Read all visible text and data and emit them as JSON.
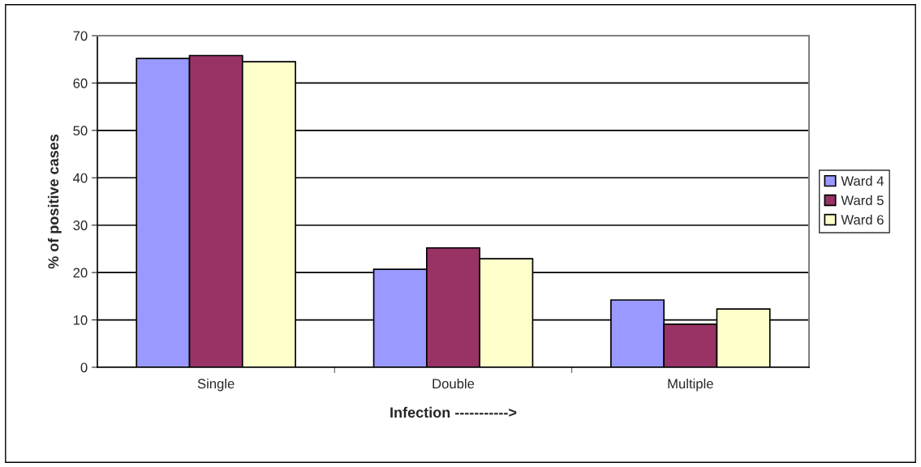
{
  "chart_data": {
    "type": "bar",
    "xlabel": "Infection ----------->",
    "ylabel": "% of positive cases",
    "categories": [
      "Single",
      "Double",
      "Multiple"
    ],
    "series": [
      {
        "name": "Ward 4",
        "color": "#9999ff",
        "values": [
          65.2,
          20.7,
          14.2
        ]
      },
      {
        "name": "Ward 5",
        "color": "#993366",
        "values": [
          65.8,
          25.2,
          9.1
        ]
      },
      {
        "name": "Ward 6",
        "color": "#ffffcc",
        "values": [
          64.5,
          22.9,
          12.3
        ]
      }
    ],
    "ylim": [
      0,
      70
    ],
    "yticks": [
      0,
      10,
      20,
      30,
      40,
      50,
      60,
      70
    ],
    "grid": "y",
    "legend": "right"
  }
}
